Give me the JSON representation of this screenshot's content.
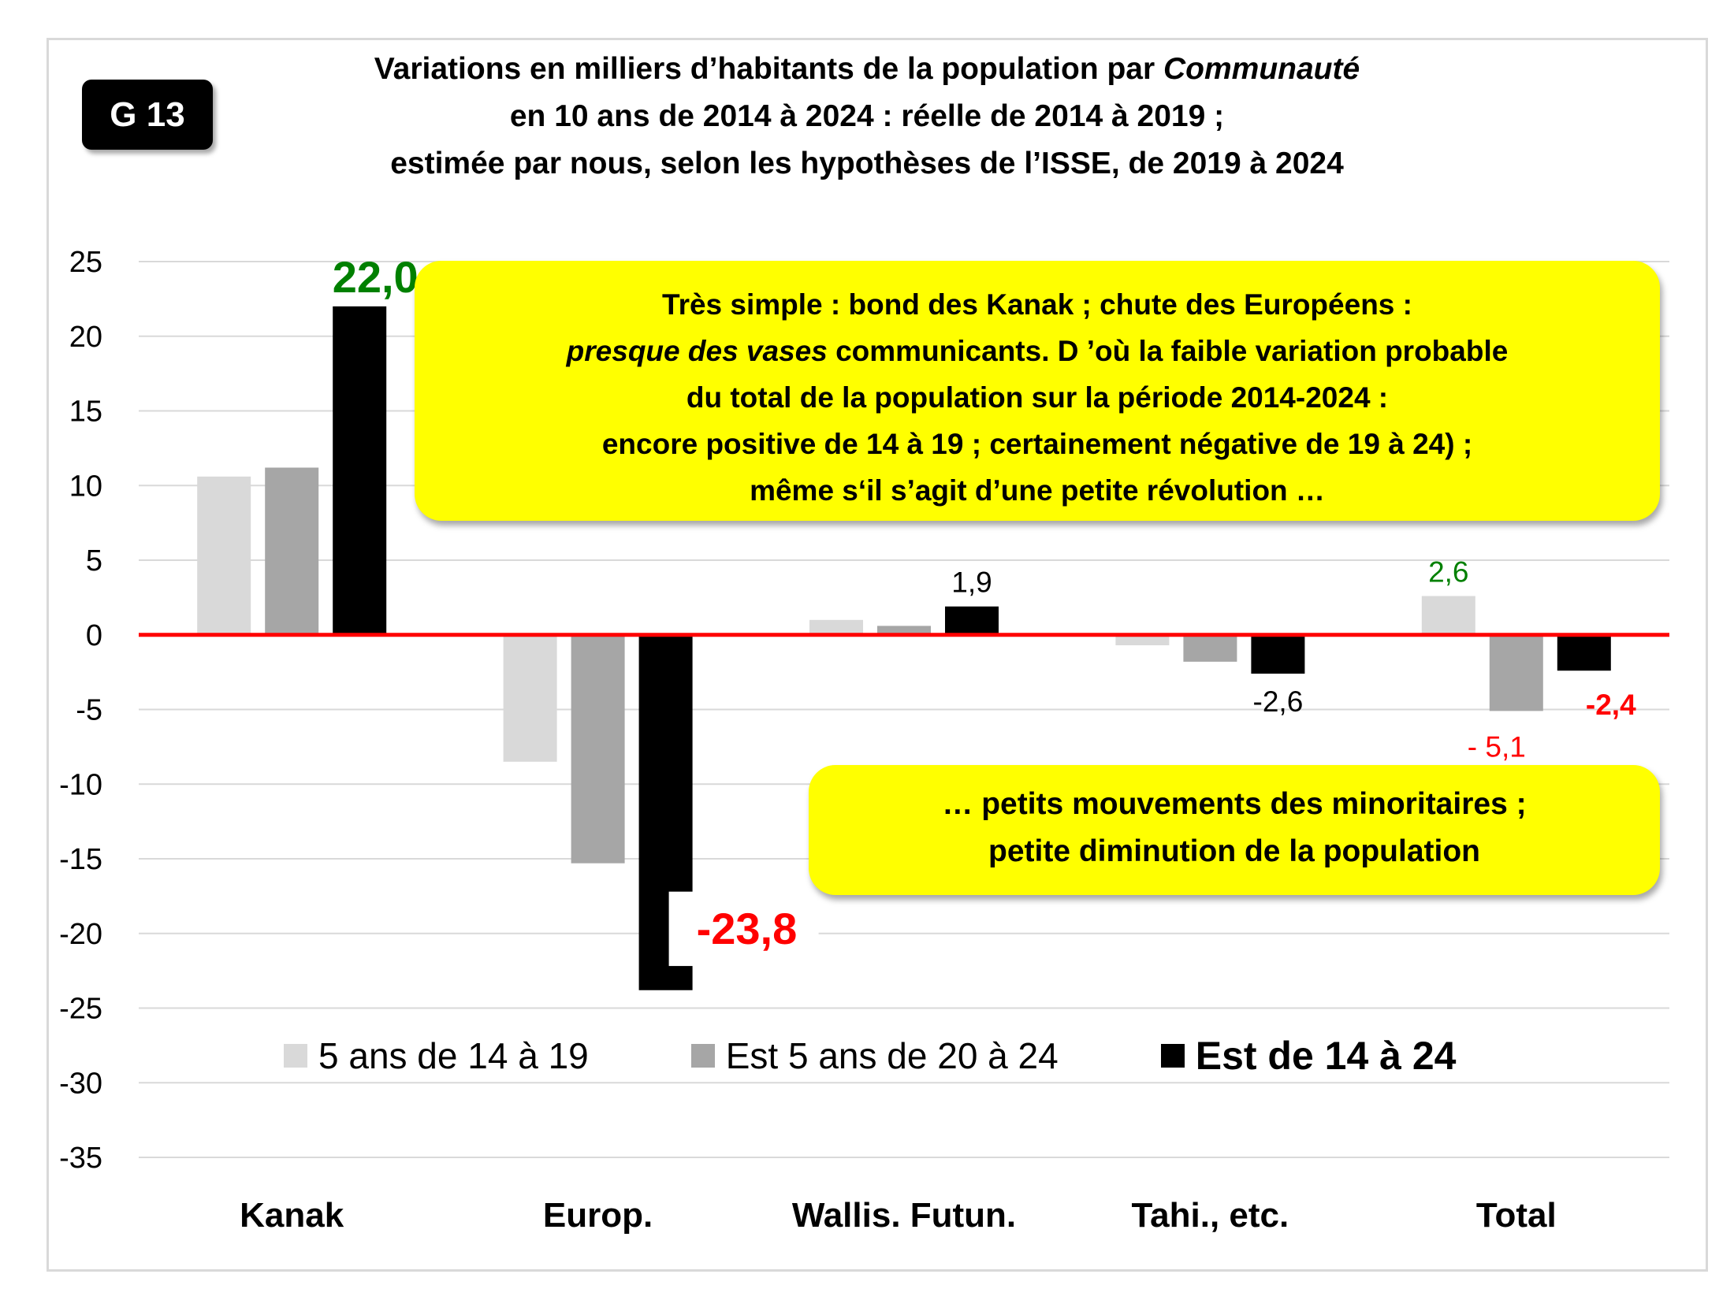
{
  "badge": "G 13",
  "title": {
    "line1_pre": "Variations en milliers d’habitants de la population par ",
    "line1_italic": "Communauté",
    "line2": "en 10 ans de 2014 à 2024 : réelle de 2014 à 2019 ;",
    "line3": "estimée par nous,  selon les hypothèses de l’ISSE, de 2019 à 2024"
  },
  "callout1": {
    "line1": "Très simple :  bond des Kanak ; chute des Européens :",
    "line2_italic": "presque des vases",
    "line2_rest": " communicants. D ’où la faible variation probable",
    "line3": "du total de la population sur la période 2014-2024 :",
    "line4": "encore positive de 14 à 19 ; certainement négative de 19 à 24) ;",
    "line5": "même s‘il s’agit d’une petite révolution …"
  },
  "callout2": {
    "line1": "… petits mouvements des minoritaires ;",
    "line2": "petite diminution de la population"
  },
  "legend": [
    {
      "label": "5 ans de 14 à 19",
      "color": "#d9d9d9"
    },
    {
      "label": "Est 5 ans de 20 à 24",
      "color": "#a6a6a6"
    },
    {
      "label": "Est de 14 à 24",
      "color": "#000000"
    }
  ],
  "chart_data": {
    "type": "bar",
    "categories": [
      "Kanak",
      "Europ.",
      "Wallis. Futun.",
      "Tahi., etc.",
      "Total"
    ],
    "series": [
      {
        "name": "5 ans de 14 à 19",
        "color": "#d9d9d9",
        "values": [
          10.6,
          -8.5,
          1.0,
          -0.7,
          2.6
        ]
      },
      {
        "name": "Est 5 ans de 20 à 24",
        "color": "#a6a6a6",
        "values": [
          11.2,
          -15.3,
          0.6,
          -1.8,
          -5.1
        ]
      },
      {
        "name": "Est de 14 à 24",
        "color": "#000000",
        "values": [
          22.0,
          -23.8,
          1.9,
          -2.6,
          -2.4
        ]
      }
    ],
    "ylim": [
      -35,
      25
    ],
    "yticks": [
      25,
      20,
      15,
      10,
      5,
      0,
      -5,
      -10,
      -15,
      -20,
      -25,
      -30,
      -35
    ],
    "ytick_labels": [
      "25",
      "20",
      "15",
      "10",
      "5",
      "0",
      "-5",
      "-10",
      "-15",
      "-20",
      "-25",
      "-30",
      "-35"
    ],
    "grid": true,
    "zero_line_color": "#ff0000",
    "legend_position": "bottom-inside",
    "data_labels": [
      {
        "category": "Kanak",
        "series": 2,
        "text": "22,0",
        "color": "#008000",
        "style": "large-bold"
      },
      {
        "category": "Europ.",
        "series": 2,
        "text": "-23,8",
        "color": "#ff0000",
        "style": "large-bold"
      },
      {
        "category": "Wallis. Futun.",
        "series": 2,
        "text": "1,9",
        "color": "#000000",
        "style": "normal"
      },
      {
        "category": "Tahi., etc.",
        "series": 2,
        "text": "-2,6",
        "color": "#000000",
        "style": "normal"
      },
      {
        "category": "Total",
        "series": 0,
        "text": "2,6",
        "color": "#008000",
        "style": "normal"
      },
      {
        "category": "Total",
        "series": 1,
        "text": "- 5,1",
        "color": "#ff0000",
        "style": "normal"
      },
      {
        "category": "Total",
        "series": 2,
        "text": "-2,4",
        "color": "#ff0000",
        "style": "bold"
      }
    ]
  }
}
